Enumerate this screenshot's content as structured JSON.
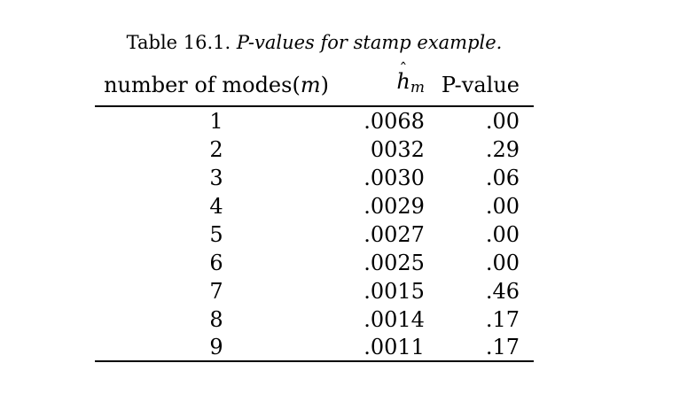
{
  "caption": {
    "label": "Table 16.1.",
    "title": "P-values for stamp example."
  },
  "columns": {
    "modes": "number of modes(",
    "modes_var": "m",
    "modes_close": ")",
    "h_symbol": "h",
    "h_hat": "ˆ",
    "h_sub": "m",
    "pvalue": "P-value"
  },
  "rows": [
    {
      "m": "1",
      "h": ".0068",
      "p": ".00"
    },
    {
      "m": "2",
      "h": "0032",
      "p": ".29"
    },
    {
      "m": "3",
      "h": ".0030",
      "p": ".06"
    },
    {
      "m": "4",
      "h": ".0029",
      "p": ".00"
    },
    {
      "m": "5",
      "h": ".0027",
      "p": ".00"
    },
    {
      "m": "6",
      "h": ".0025",
      "p": ".00"
    },
    {
      "m": "7",
      "h": ".0015",
      "p": ".46"
    },
    {
      "m": "8",
      "h": ".0014",
      "p": ".17"
    },
    {
      "m": "9",
      "h": ".0011",
      "p": ".17"
    }
  ]
}
